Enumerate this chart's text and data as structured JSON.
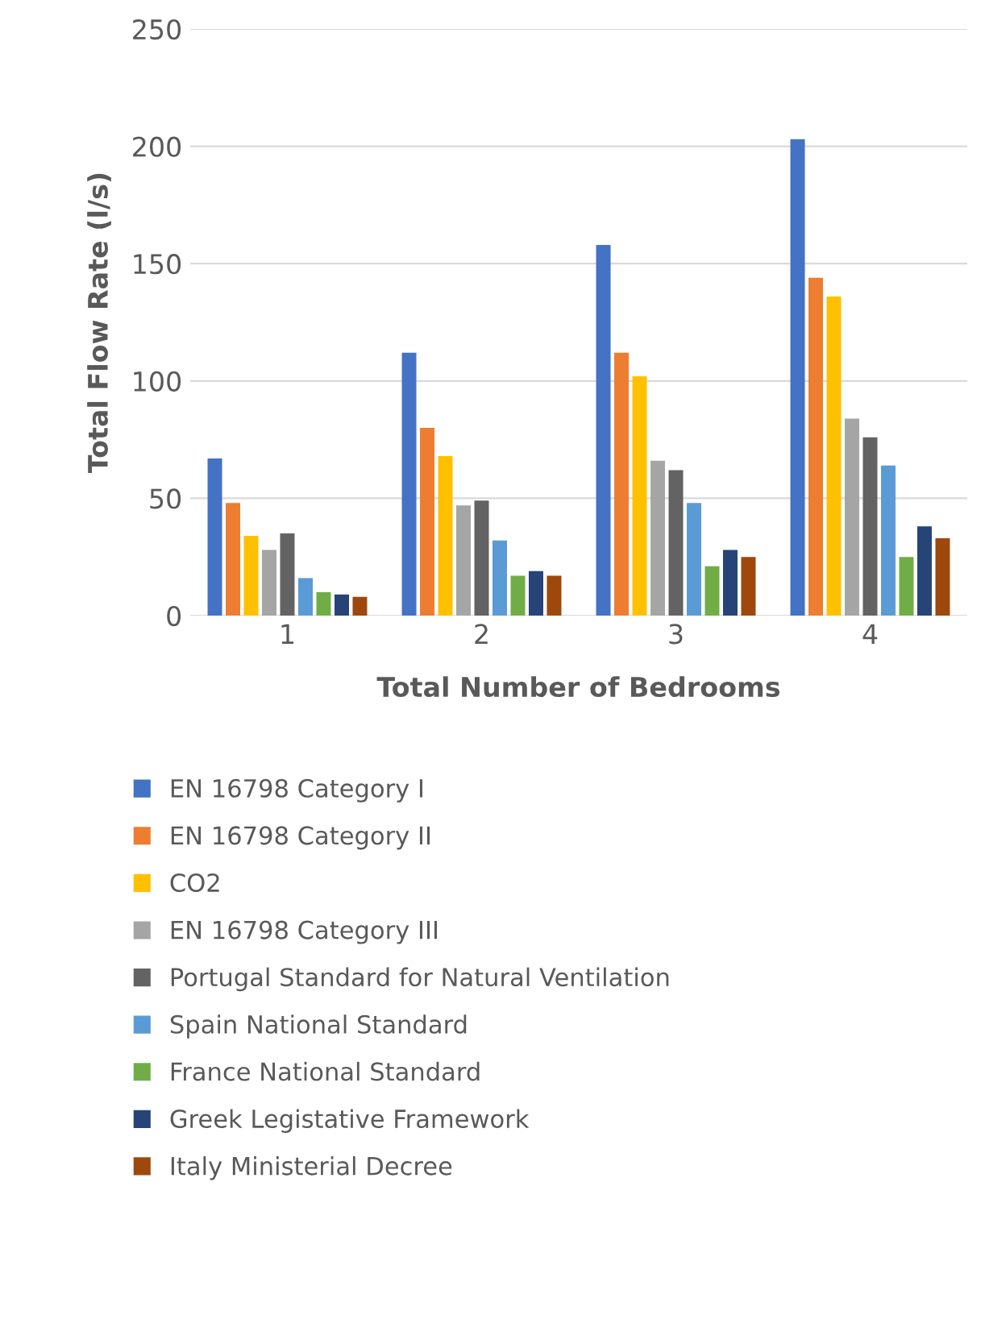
{
  "chart_data": {
    "type": "bar",
    "xlabel": "Total Number of Bedrooms",
    "ylabel": "Total Flow Rate (l/s)",
    "categories": [
      "1",
      "2",
      "3",
      "4"
    ],
    "series": [
      {
        "name": "EN 16798 Category I",
        "color": "#4472c4",
        "values": [
          67,
          112,
          158,
          203
        ]
      },
      {
        "name": "EN 16798 Category II",
        "color": "#ed7d31",
        "values": [
          48,
          80,
          112,
          144
        ]
      },
      {
        "name": "CO2",
        "color": "#ffc000",
        "values": [
          34,
          68,
          102,
          136
        ]
      },
      {
        "name": "EN 16798 Category III",
        "color": "#a5a5a5",
        "values": [
          28,
          47,
          66,
          84
        ]
      },
      {
        "name": "Portugal Standard for Natural Ventilation",
        "color": "#636363",
        "values": [
          35,
          49,
          62,
          76
        ]
      },
      {
        "name": "Spain National Standard",
        "color": "#5b9bd5",
        "values": [
          16,
          32,
          48,
          64
        ]
      },
      {
        "name": "France National Standard",
        "color": "#70ad47",
        "values": [
          10,
          17,
          21,
          25
        ]
      },
      {
        "name": "Greek Legistative Framework",
        "color": "#264478",
        "values": [
          9,
          19,
          28,
          38
        ]
      },
      {
        "name": "Italy Ministerial Decree",
        "color": "#9e480e",
        "values": [
          8,
          17,
          25,
          33
        ]
      }
    ],
    "ylim": [
      0,
      250
    ],
    "yticks": [
      0,
      50,
      100,
      150,
      200,
      250
    ],
    "grid": "y",
    "legend": "bottom"
  }
}
